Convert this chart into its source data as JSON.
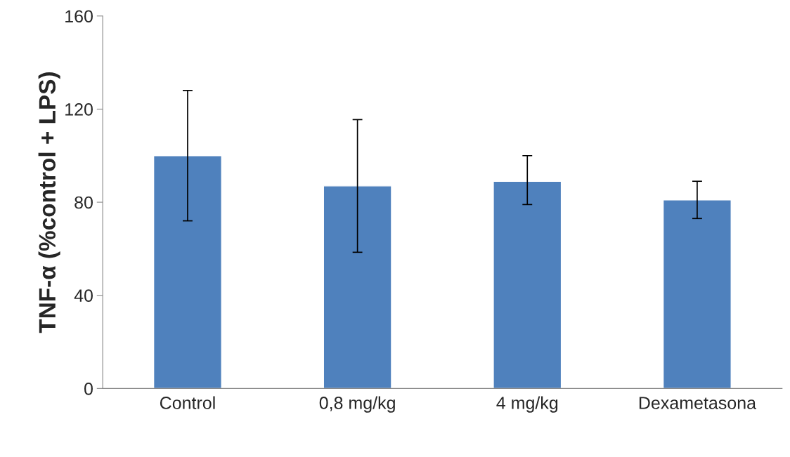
{
  "chart_data": {
    "type": "bar",
    "ylabel": "TNF-α (%control + LPS)",
    "categories": [
      "Control",
      "0,8 mg/kg",
      "4 mg/kg",
      "Dexametasona"
    ],
    "values": [
      100,
      87,
      89,
      81
    ],
    "errors": [
      [
        72,
        128
      ],
      [
        58.5,
        115.5
      ],
      [
        79,
        100
      ],
      [
        73,
        89
      ]
    ],
    "color": "#4f81bd",
    "ylim": [
      0,
      160
    ],
    "yticks": [
      0,
      40,
      80,
      120,
      160
    ],
    "grid": false
  }
}
